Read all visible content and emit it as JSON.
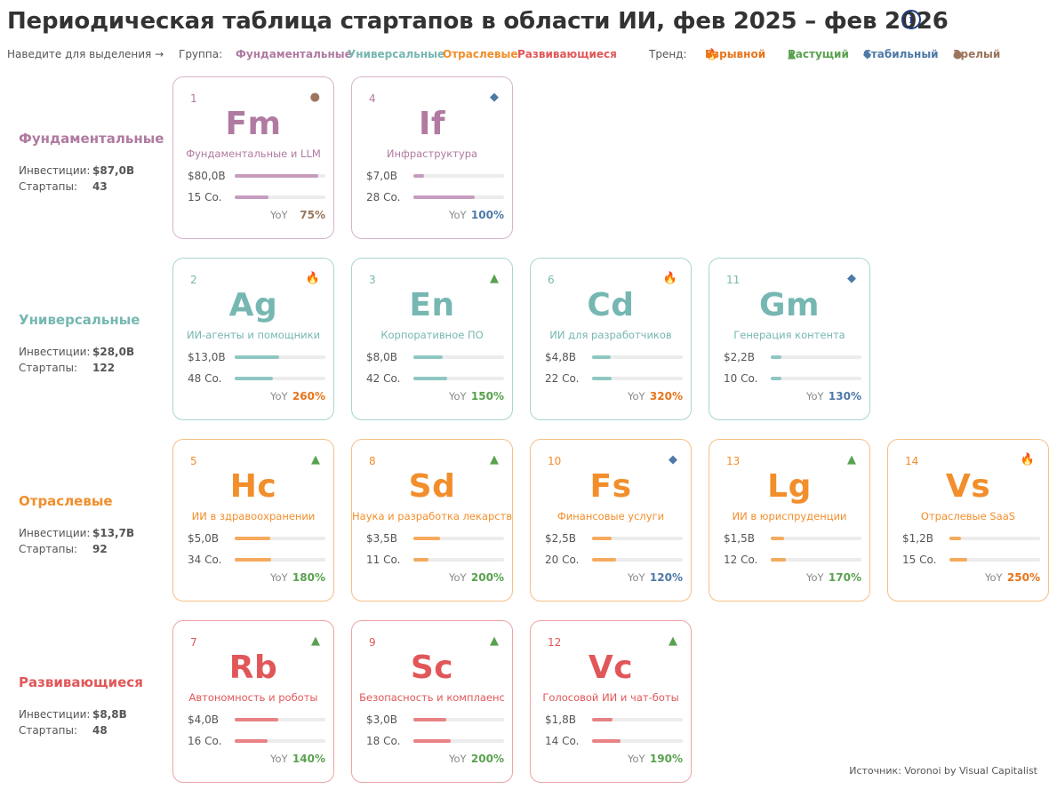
{
  "header": {
    "title": "Периодическая таблица стартапов в области ИИ, фев 2025 – фев 2026",
    "info_glyph": "i"
  },
  "legend": {
    "hover_hint": "Наведите для выделения →",
    "group_label": "Группа:",
    "groups": [
      "Фундаментальные",
      "Универсальные",
      "Отраслевые",
      "Развивающиеся"
    ],
    "trend_label": "Тренд:",
    "trends": [
      {
        "glyph": "🔥",
        "label": "Взрывной",
        "icon": "fire-icon"
      },
      {
        "glyph": "▲",
        "label": "Растущий",
        "icon": "triangle-up-icon"
      },
      {
        "glyph": "◆",
        "label": "Стабильный",
        "icon": "diamond-icon"
      },
      {
        "glyph": "●",
        "label": "Зрелый",
        "icon": "circle-icon"
      }
    ]
  },
  "colors": {
    "foundational": "#b07aa1",
    "foundational_bar": "#c59cbd",
    "foundational_border": "#d6b4cc",
    "horizontal": "#76b7b2",
    "horizontal_bar": "#8fc7c2",
    "horizontal_border": "#a8d4d0",
    "vertical": "#f28e2b",
    "vertical_bar": "#f5aa5e",
    "vertical_border": "#f6bf85",
    "emerging": "#e15759",
    "emerging_bar": "#e88283",
    "emerging_border": "#eea3a4",
    "trend_explosive": "#e8741a",
    "trend_growing": "#59a14f",
    "trend_stable": "#4e79a7",
    "trend_mature": "#9c755f"
  },
  "groups": [
    {
      "name": "Фундаментальные",
      "inv_label": "Инвестиции:",
      "inv_value": "$87,0B",
      "st_label": "Стартапы:",
      "st_value": "43"
    },
    {
      "name": "Универсальные",
      "inv_label": "Инвестиции:",
      "inv_value": "$28,0B",
      "st_label": "Стартапы:",
      "st_value": "122"
    },
    {
      "name": "Отраслевые",
      "inv_label": "Инвестиции:",
      "inv_value": "$13,7B",
      "st_label": "Стартапы:",
      "st_value": "92"
    },
    {
      "name": "Развивающиеся",
      "inv_label": "Инвестиции:",
      "inv_value": "$8,8B",
      "st_label": "Стартапы:",
      "st_value": "48"
    }
  ],
  "cards": [
    {
      "num": "1",
      "sym": "Fm",
      "name": "Фундаментальные и LLM",
      "funding": "$80,0B",
      "cos": "15 Co.",
      "funding_frac": 0.92,
      "cos_frac": 0.37,
      "yoy_label": "YoY",
      "yoy": "75%",
      "trend": "mature"
    },
    {
      "num": "4",
      "sym": "If",
      "name": "Инфраструктура",
      "funding": "$7,0B",
      "cos": "28 Co.",
      "funding_frac": 0.12,
      "cos_frac": 0.68,
      "yoy_label": "YoY",
      "yoy": "100%",
      "trend": "stable"
    },
    {
      "num": "2",
      "sym": "Ag",
      "name": "ИИ-агенты и помощники",
      "funding": "$13,0B",
      "cos": "48 Co.",
      "funding_frac": 0.49,
      "cos_frac": 0.42,
      "yoy_label": "YoY",
      "yoy": "260%",
      "trend": "explosive"
    },
    {
      "num": "3",
      "sym": "En",
      "name": "Корпоративное ПО",
      "funding": "$8,0B",
      "cos": "42 Co.",
      "funding_frac": 0.32,
      "cos_frac": 0.37,
      "yoy_label": "YoY",
      "yoy": "150%",
      "trend": "growing"
    },
    {
      "num": "6",
      "sym": "Cd",
      "name": "ИИ для разработчиков",
      "funding": "$4,8B",
      "cos": "22 Co.",
      "funding_frac": 0.21,
      "cos_frac": 0.22,
      "yoy_label": "YoY",
      "yoy": "320%",
      "trend": "explosive"
    },
    {
      "num": "11",
      "sym": "Gm",
      "name": "Генерация контента",
      "funding": "$2,2B",
      "cos": "10 Co.",
      "funding_frac": 0.12,
      "cos_frac": 0.12,
      "yoy_label": "YoY",
      "yoy": "130%",
      "trend": "stable"
    },
    {
      "num": "5",
      "sym": "Hc",
      "name": "ИИ в здравоохранении",
      "funding": "$5,0B",
      "cos": "34 Co.",
      "funding_frac": 0.39,
      "cos_frac": 0.4,
      "yoy_label": "YoY",
      "yoy": "180%",
      "trend": "growing"
    },
    {
      "num": "8",
      "sym": "Sd",
      "name": "Наука и разработка лекарств",
      "funding": "$3,5B",
      "cos": "11 Co.",
      "funding_frac": 0.29,
      "cos_frac": 0.17,
      "yoy_label": "YoY",
      "yoy": "200%",
      "trend": "growing"
    },
    {
      "num": "10",
      "sym": "Fs",
      "name": "Финансовые услуги",
      "funding": "$2,5B",
      "cos": "20 Co.",
      "funding_frac": 0.22,
      "cos_frac": 0.26,
      "yoy_label": "YoY",
      "yoy": "120%",
      "trend": "stable"
    },
    {
      "num": "13",
      "sym": "Lg",
      "name": "ИИ в юриспруденции",
      "funding": "$1,5B",
      "cos": "12 Co.",
      "funding_frac": 0.15,
      "cos_frac": 0.17,
      "yoy_label": "YoY",
      "yoy": "170%",
      "trend": "growing"
    },
    {
      "num": "14",
      "sym": "Vs",
      "name": "Отраслевые SaaS",
      "funding": "$1,2B",
      "cos": "15 Co.",
      "funding_frac": 0.13,
      "cos_frac": 0.2,
      "yoy_label": "YoY",
      "yoy": "250%",
      "trend": "explosive"
    },
    {
      "num": "7",
      "sym": "Rb",
      "name": "Автономность и роботы",
      "funding": "$4,0B",
      "cos": "16 Co.",
      "funding_frac": 0.48,
      "cos_frac": 0.36,
      "yoy_label": "YoY",
      "yoy": "140%",
      "trend": "growing"
    },
    {
      "num": "9",
      "sym": "Sc",
      "name": "Безопасность и комплаенс",
      "funding": "$3,0B",
      "cos": "18 Co.",
      "funding_frac": 0.36,
      "cos_frac": 0.41,
      "yoy_label": "YoY",
      "yoy": "200%",
      "trend": "growing"
    },
    {
      "num": "12",
      "sym": "Vc",
      "name": "Голосовой ИИ и чат-боты",
      "funding": "$1,8B",
      "cos": "14 Co.",
      "funding_frac": 0.23,
      "cos_frac": 0.31,
      "yoy_label": "YoY",
      "yoy": "190%",
      "trend": "growing"
    }
  ],
  "footer": {
    "source": "Источник: Voronoi by Visual Capitalist"
  }
}
